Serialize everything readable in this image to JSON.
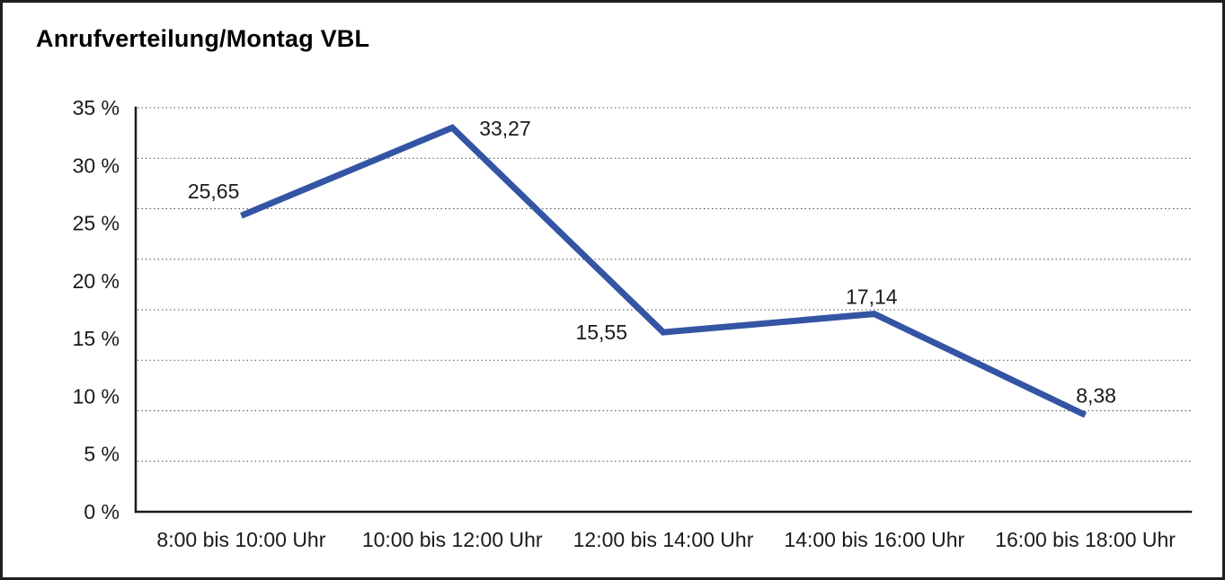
{
  "window": {
    "title": "Anrufverteilung/Montag VBL"
  },
  "chart_data": {
    "type": "line",
    "title": "Anrufverteilung/Montag VBL",
    "categories": [
      "8:00 bis 10:00 Uhr",
      "10:00 bis 12:00 Uhr",
      "12:00 bis 14:00 Uhr",
      "14:00 bis 16:00 Uhr",
      "16:00 bis 18:00 Uhr"
    ],
    "values": [
      25.65,
      33.27,
      15.55,
      17.14,
      8.38
    ],
    "point_labels": [
      "25,65",
      "33,27",
      "15,55",
      "17,14",
      "8,38"
    ],
    "y_ticks": [
      "35 %",
      "30 %",
      "25 %",
      "20 %",
      "15 %",
      "10 %",
      "5 %",
      "0 %"
    ],
    "y_tick_values": [
      35,
      30,
      25,
      20,
      15,
      10,
      5,
      0
    ],
    "ylim": [
      0,
      35
    ],
    "xlabel": "",
    "ylabel": "",
    "legend": "none",
    "grid": "horizontal-dotted",
    "gridline_count": 9,
    "line_color": "#3454A4",
    "axis_color": "#1a1a1a",
    "text_color": "#1a1a1a",
    "background": "#ffffff"
  }
}
